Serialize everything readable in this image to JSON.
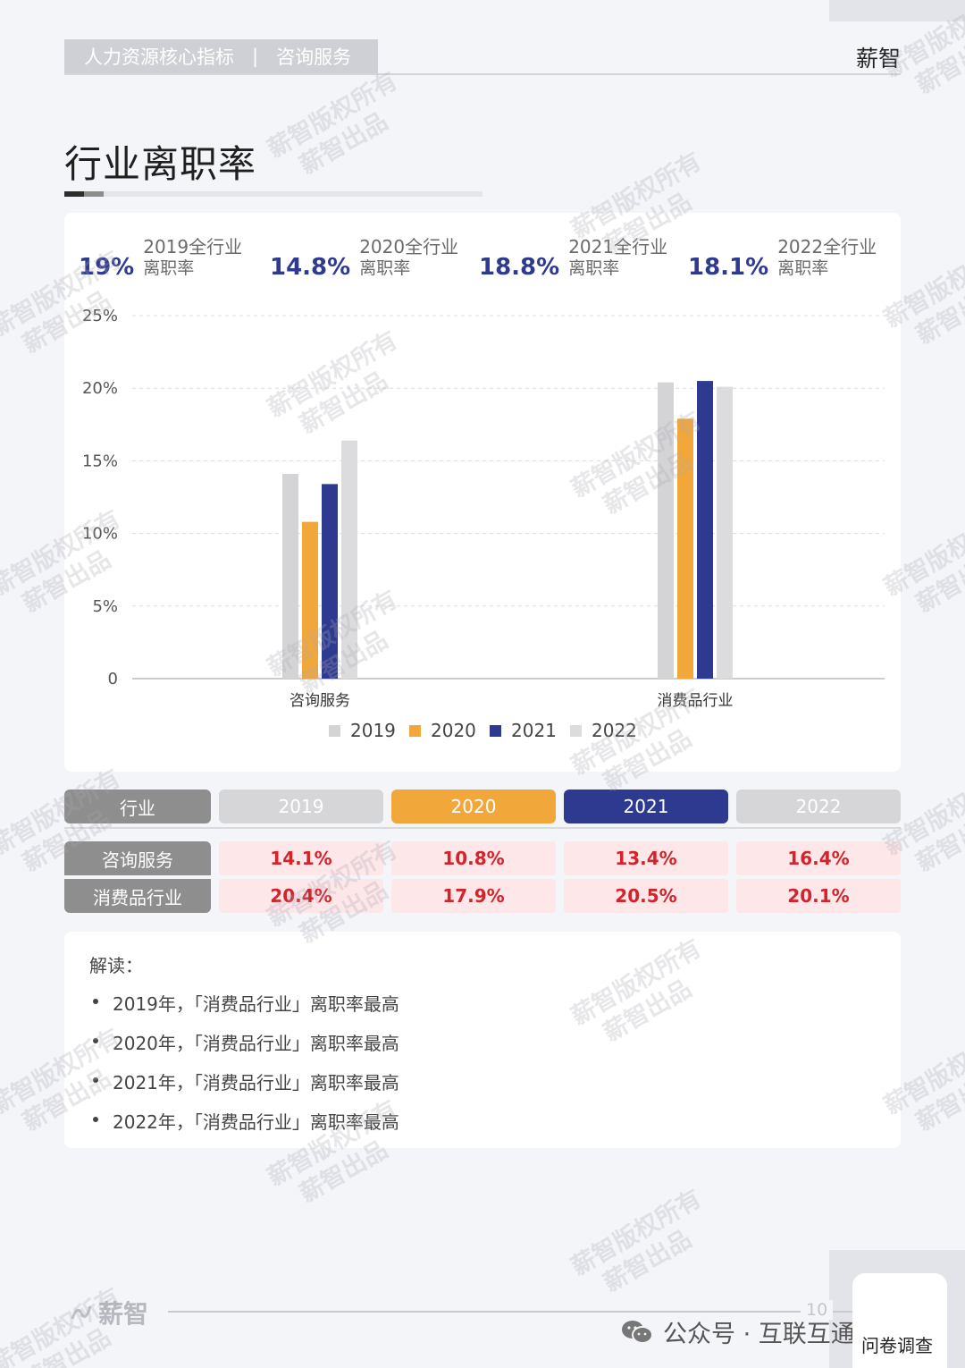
{
  "header": {
    "section": "人力资源核心指标",
    "separator": "|",
    "category": "咨询服务",
    "brand": "薪智"
  },
  "page_title": "行业离职率",
  "kpis": [
    {
      "value": "19%",
      "label_line1": "2019全行业",
      "label_line2": "离职率"
    },
    {
      "value": "14.8%",
      "label_line1": "2020全行业",
      "label_line2": "离职率"
    },
    {
      "value": "18.8%",
      "label_line1": "2021全行业",
      "label_line2": "离职率"
    },
    {
      "value": "18.1%",
      "label_line1": "2022全行业",
      "label_line2": "离职率"
    }
  ],
  "chart_data": {
    "type": "bar",
    "categories": [
      "咨询服务",
      "消费品行业"
    ],
    "series": [
      {
        "name": "2019",
        "color": "#d4d4d6",
        "values": [
          14.1,
          20.4
        ]
      },
      {
        "name": "2020",
        "color": "#f2a73b",
        "values": [
          10.8,
          17.9
        ]
      },
      {
        "name": "2021",
        "color": "#2e3a8f",
        "values": [
          13.4,
          20.5
        ]
      },
      {
        "name": "2022",
        "color": "#dcdcde",
        "values": [
          16.4,
          20.1
        ]
      }
    ],
    "y_ticks": [
      "0",
      "5%",
      "10%",
      "15%",
      "20%",
      "25%"
    ],
    "ylim": [
      0,
      25
    ],
    "grid": true,
    "legend_position": "bottom"
  },
  "table": {
    "header": [
      "行业",
      "2019",
      "2020",
      "2021",
      "2022"
    ],
    "header_colors": [
      "#8e8e8e",
      "#d6d6d8",
      "#f2a73b",
      "#2e3a8f",
      "#d6d6d8"
    ],
    "rows": [
      {
        "label": "咨询服务",
        "values": [
          "14.1%",
          "10.8%",
          "13.4%",
          "16.4%"
        ]
      },
      {
        "label": "消费品行业",
        "values": [
          "20.4%",
          "17.9%",
          "20.5%",
          "20.1%"
        ]
      }
    ]
  },
  "notes": {
    "title": "解读：",
    "items": [
      "2019年，「消费品行业」离职率最高",
      "2020年，「消费品行业」离职率最高",
      "2021年，「消费品行业」离职率最高",
      "2022年，「消费品行业」离职率最高"
    ]
  },
  "footer": {
    "brand": "薪智",
    "page_number": "10",
    "wechat_text": "公众号 · 互联互通社区",
    "survey_button": "问卷调查"
  },
  "watermark": {
    "line1": "薪智版权所有",
    "line2": "薪智出品"
  }
}
